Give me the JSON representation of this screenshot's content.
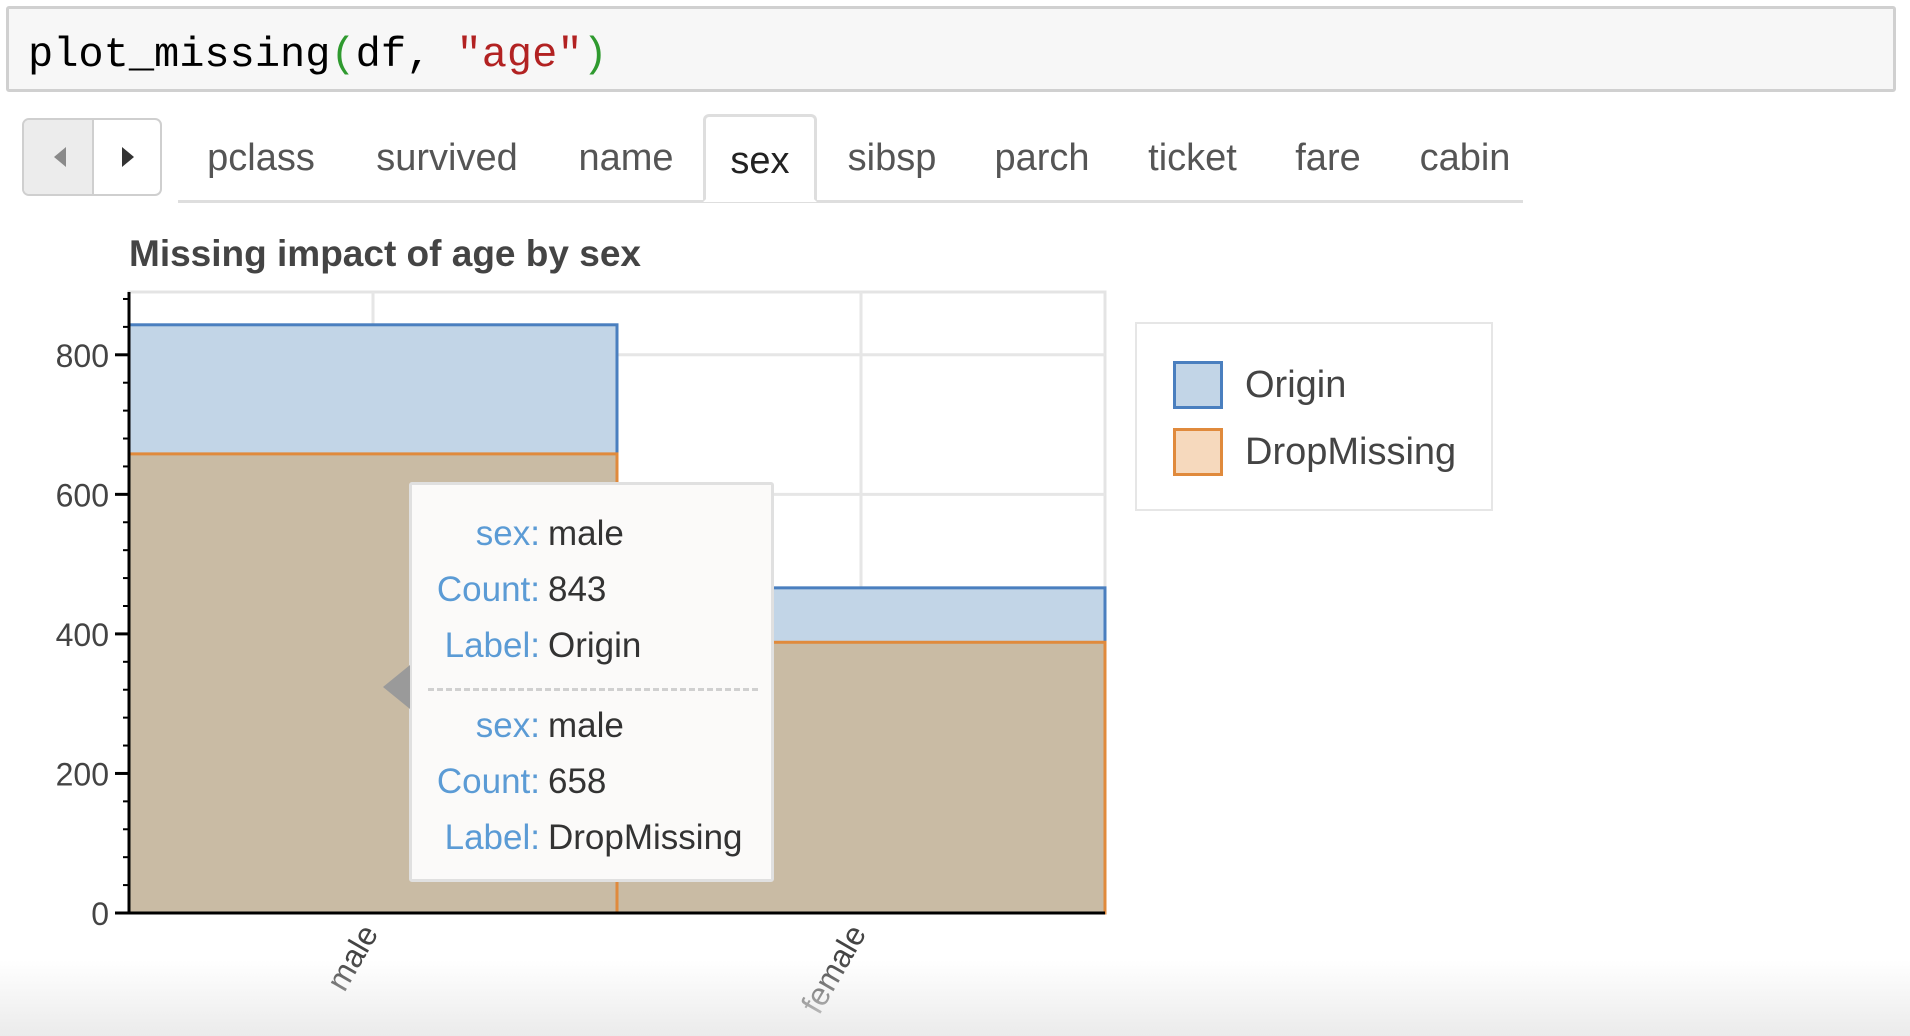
{
  "code": {
    "func": "plot_missing",
    "open_paren": "(",
    "arg1": "df, ",
    "arg2": "\"age\"",
    "close_paren": ")"
  },
  "nav": {
    "prev_icon": "caret-left-icon",
    "next_icon": "caret-right-icon"
  },
  "tabs": [
    {
      "label": "pclass"
    },
    {
      "label": "survived"
    },
    {
      "label": "name"
    },
    {
      "label": "sex",
      "active": true
    },
    {
      "label": "sibsp"
    },
    {
      "label": "parch"
    },
    {
      "label": "ticket"
    },
    {
      "label": "fare"
    },
    {
      "label": "cabin"
    }
  ],
  "chart_data": {
    "type": "bar",
    "title": "Missing impact of age by sex",
    "xlabel": "",
    "ylabel": "",
    "categories": [
      "male",
      "female"
    ],
    "series": [
      {
        "name": "Origin",
        "values": [
          843,
          466
        ],
        "color": "#c2d5e7",
        "border": "#4a7fbf"
      },
      {
        "name": "DropMissing",
        "values": [
          658,
          388
        ],
        "color": "#f6d9bd",
        "border": "#e08a3c"
      }
    ],
    "overlap_color": "#c9bba4",
    "ylim": [
      0,
      890
    ],
    "yticks": [
      0,
      200,
      400,
      600,
      800
    ],
    "grid": true,
    "legend_position": "right",
    "tick_rotation": -60
  },
  "tooltip": {
    "entries": [
      {
        "sex_key": "sex:",
        "sex": "male",
        "count_key": "Count:",
        "count": "843",
        "label_key": "Label:",
        "label": "Origin"
      },
      {
        "sex_key": "sex:",
        "sex": "male",
        "count_key": "Count:",
        "count": "658",
        "label_key": "Label:",
        "label": "DropMissing"
      }
    ]
  }
}
